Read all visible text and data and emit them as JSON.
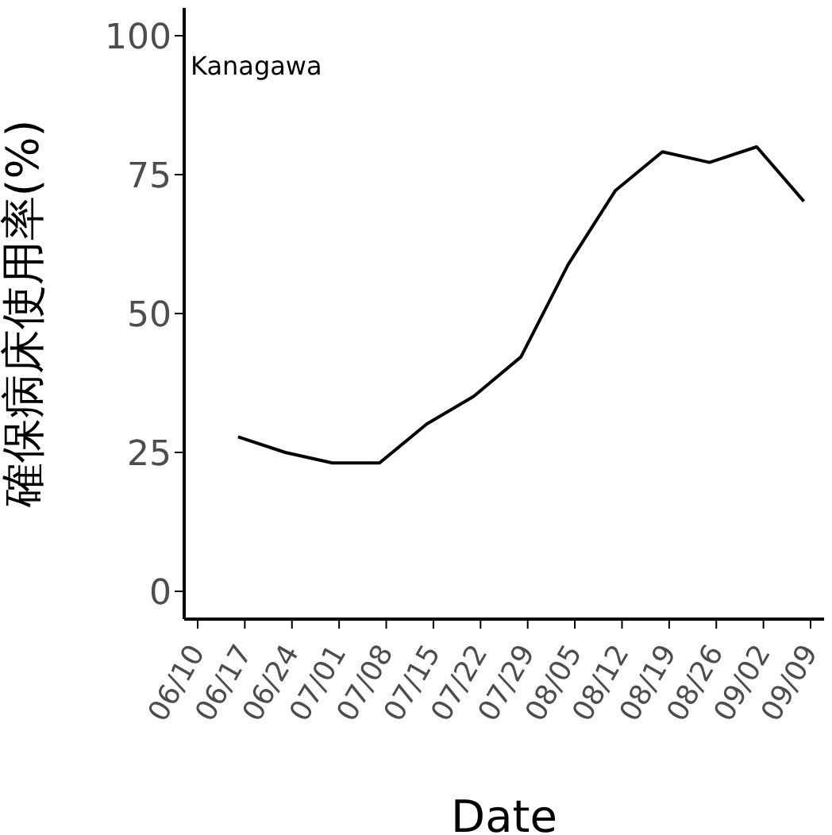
{
  "chart_data": {
    "type": "line",
    "xlabel": "Date",
    "ylabel": "確保病床使用率(%)",
    "annotations": [
      "Kanagawa"
    ],
    "x": [
      "--06-16",
      "--06-23",
      "--06-30",
      "--07-07",
      "--07-14",
      "--07-21",
      "--07-28",
      "--08-04",
      "--08-11",
      "--08-18",
      "--08-25",
      "--09-01",
      "--09-08"
    ],
    "series": [
      {
        "color": "#000000",
        "values": [
          27.8,
          25.0,
          23.1,
          23.1,
          30.1,
          35.1,
          42.2,
          58.8,
          72.1,
          79.1,
          77.2,
          80.0,
          70.2
        ]
      }
    ],
    "xlim": [
      "--06-08",
      "--09-11"
    ],
    "xticks": [
      {
        "value": "--06-10",
        "label": "06/10"
      },
      {
        "value": "--06-17",
        "label": "06/17"
      },
      {
        "value": "--06-24",
        "label": "06/24"
      },
      {
        "value": "--07-01",
        "label": "07/01"
      },
      {
        "value": "--07-08",
        "label": "07/08"
      },
      {
        "value": "--07-15",
        "label": "07/15"
      },
      {
        "value": "--07-22",
        "label": "07/22"
      },
      {
        "value": "--07-29",
        "label": "07/29"
      },
      {
        "value": "--08-05",
        "label": "08/05"
      },
      {
        "value": "--08-12",
        "label": "08/12"
      },
      {
        "value": "--08-19",
        "label": "08/19"
      },
      {
        "value": "--08-26",
        "label": "08/26"
      },
      {
        "value": "--09-02",
        "label": "09/02"
      },
      {
        "value": "--09-09",
        "label": "09/09"
      }
    ],
    "ylim": [
      -5,
      105
    ],
    "yticks": [
      0,
      25,
      50,
      75,
      100
    ],
    "grid": false,
    "legend": false,
    "marker": "none",
    "line_style": "solid"
  }
}
